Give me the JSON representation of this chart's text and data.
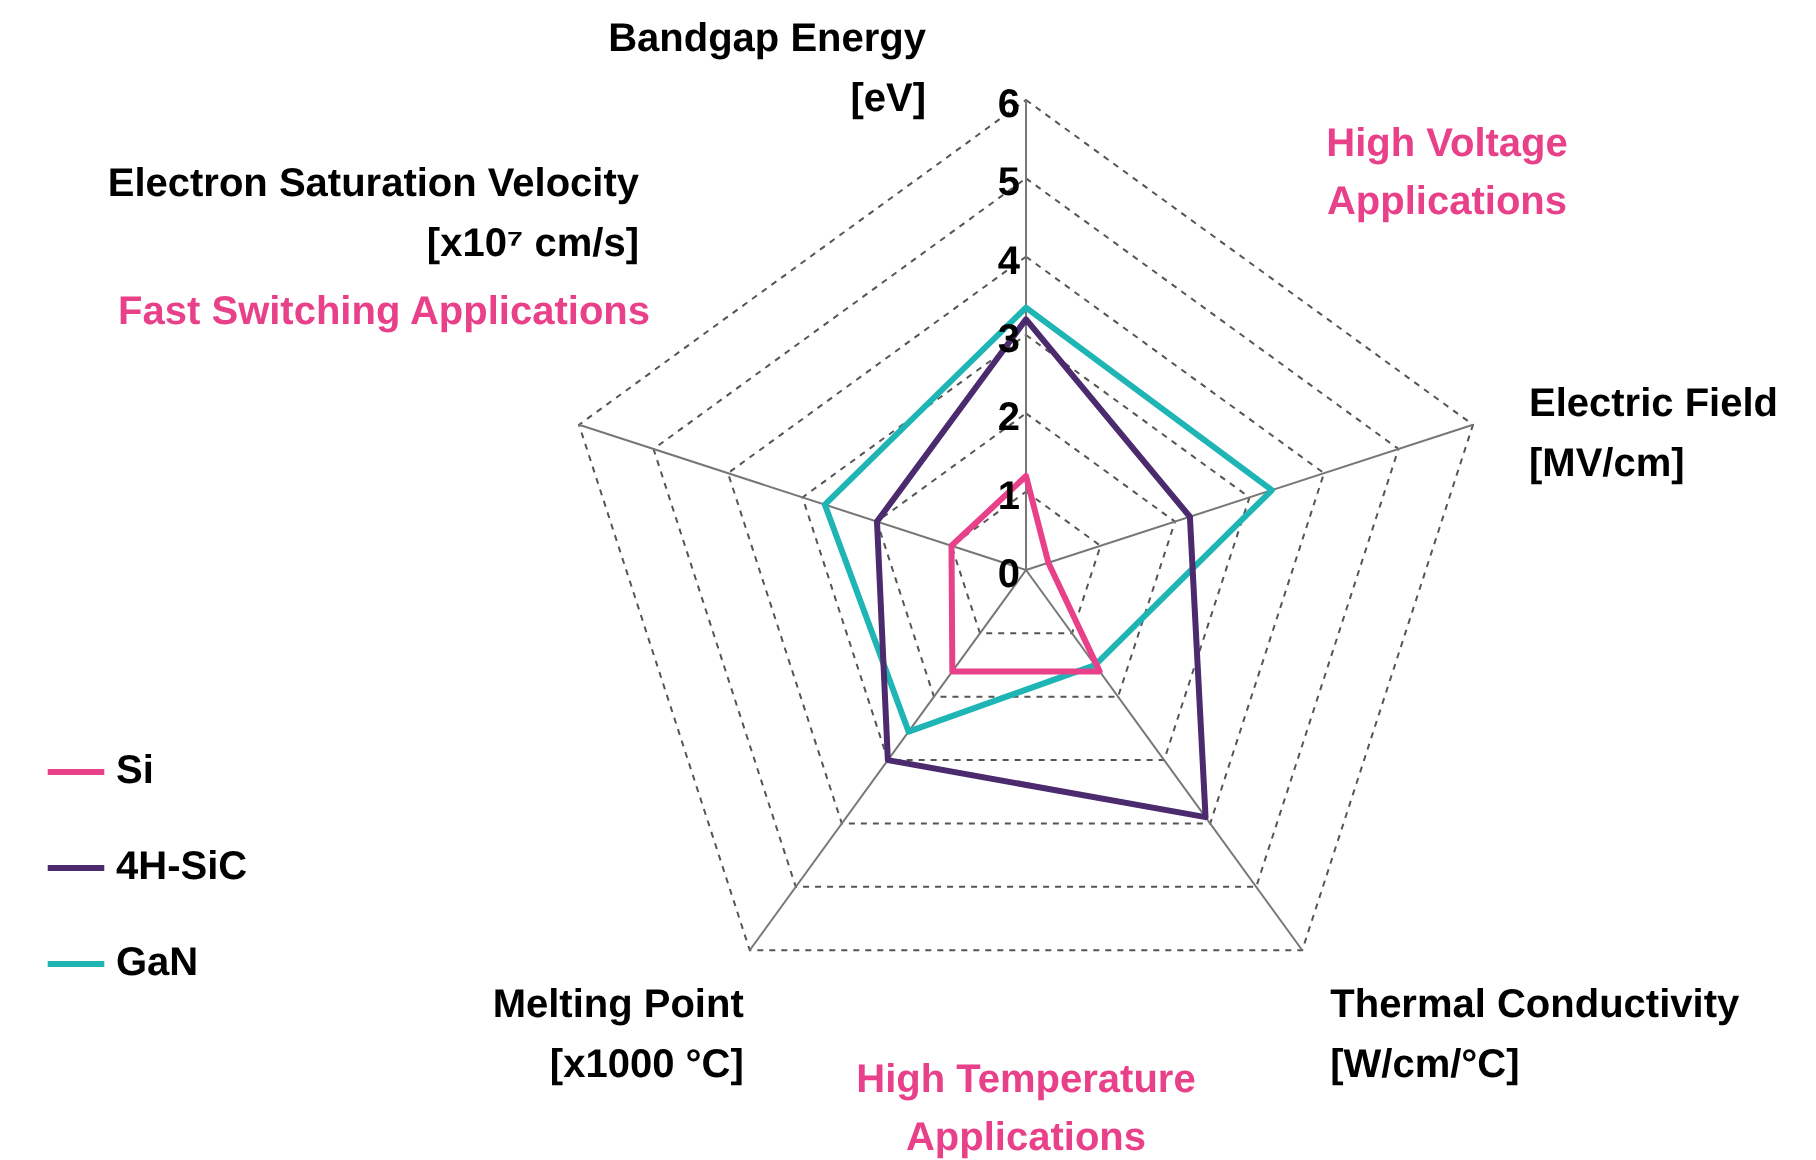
{
  "chart_data": {
    "type": "radar",
    "categories": [
      "Bandgap Energy\n[eV]",
      "Electric Field\n[MV/cm]",
      "Thermal Conductivity\n[W/cm/°C]",
      "Melting Point\n[x1000 °C]",
      "Electron Saturation Velocity\n[x10⁷ cm/s]"
    ],
    "series": [
      {
        "name": "Si",
        "color": "#e8418a",
        "values": [
          1.2,
          0.3,
          1.6,
          1.6,
          1.0
        ]
      },
      {
        "name": "4H-SiC",
        "color": "#4b2a6e",
        "values": [
          3.2,
          2.2,
          3.9,
          3.0,
          2.0
        ]
      },
      {
        "name": "GaN",
        "color": "#1fb5b5",
        "values": [
          3.35,
          3.3,
          1.5,
          2.55,
          2.7
        ]
      }
    ],
    "ylim": [
      0,
      6
    ],
    "yticks": [
      0,
      1,
      2,
      3,
      4,
      5,
      6
    ],
    "grid": true,
    "legend": "left",
    "marker": "none",
    "line_style": "solid",
    "annotations": [
      "High Voltage\nApplications",
      "Fast Switching Applications",
      "High Temperature\nApplications"
    ]
  }
}
